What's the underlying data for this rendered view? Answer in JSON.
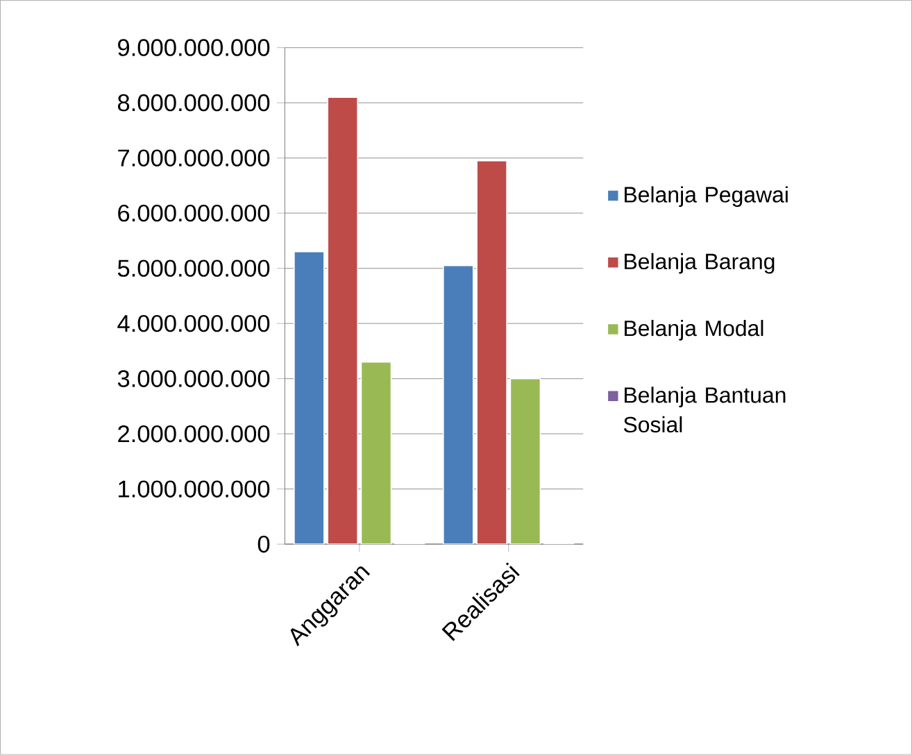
{
  "chart_data": {
    "type": "bar",
    "categories": [
      "Anggaran",
      "Realisasi"
    ],
    "series": [
      {
        "name": "Belanja Pegawai",
        "color": "#4a7ebb",
        "values": [
          5300000000,
          5050000000
        ]
      },
      {
        "name": "Belanja Barang",
        "color": "#be4b48",
        "values": [
          8100000000,
          6950000000
        ]
      },
      {
        "name": "Belanja Modal",
        "color": "#98b954",
        "values": [
          3300000000,
          3000000000
        ]
      },
      {
        "name": "Belanja Bantuan Sosial",
        "color": "#7d60a0",
        "values": [
          20000000,
          20000000
        ]
      }
    ],
    "ylim": [
      0,
      9000000000
    ],
    "yticks": [
      0,
      {
        "value": 1000000000,
        "label": "1.000.000.000"
      },
      {
        "value": 2000000000,
        "label": "2.000.000.000"
      },
      {
        "value": 3000000000,
        "label": "3.000.000.000"
      },
      {
        "value": 4000000000,
        "label": "4.000.000.000"
      },
      {
        "value": 5000000000,
        "label": "5.000.000.000"
      },
      {
        "value": 6000000000,
        "label": "6.000.000.000"
      },
      {
        "value": 7000000000,
        "label": "7.000.000.000"
      },
      {
        "value": 8000000000,
        "label": "8.000.000.000"
      },
      {
        "value": 9000000000,
        "label": "9.000.000.000"
      }
    ],
    "grid": "y",
    "legend": "right"
  }
}
